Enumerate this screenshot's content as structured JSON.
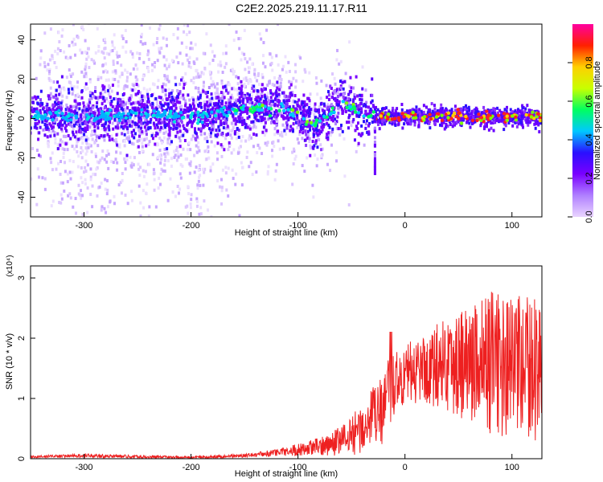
{
  "title": "C2E2.2025.219.11.17.R11",
  "chart_data": [
    {
      "type": "heatmap",
      "xlabel": "Height of straight line (km)",
      "ylabel": "Frequency (Hz)",
      "xlim": [
        -350,
        128
      ],
      "ylim": [
        -50,
        48
      ],
      "xticks": [
        -300,
        -200,
        -100,
        0,
        100
      ],
      "yticks": [
        -40,
        -20,
        0,
        20,
        40
      ],
      "colorbar": {
        "label": "Normalized spectral amplitude",
        "range": [
          0,
          1
        ],
        "ticks": [
          "0.0",
          "0.2",
          "0.4",
          "0.6",
          "0.8"
        ],
        "colors": [
          "#e9d4ff",
          "#b080ff",
          "#7a00ff",
          "#2a10ff",
          "#00c8ff",
          "#00ff60",
          "#c8ff00",
          "#ffd000",
          "#ff2000",
          "#ff00a0"
        ]
      },
      "ridge": {
        "x": [
          -350,
          -300,
          -250,
          -200,
          -170,
          -150,
          -130,
          -110,
          -100,
          -95,
          -85,
          -80,
          -70,
          -60,
          -50,
          -40,
          -30,
          -28,
          -20,
          0,
          50,
          100,
          128
        ],
        "y": [
          2,
          1,
          2,
          1,
          3,
          5,
          6,
          4,
          2,
          -1,
          -3,
          -2,
          4,
          8,
          6,
          3,
          2,
          1,
          1,
          1,
          1,
          1,
          1
        ]
      }
    },
    {
      "type": "line",
      "xlabel": "Height of straight line (km)",
      "ylabel": "SNR (10 * v/v)",
      "yscale_label": "(x10⁴)",
      "xlim": [
        -350,
        128
      ],
      "ylim": [
        0,
        3.2
      ],
      "xticks": [
        -300,
        -200,
        -100,
        0,
        100
      ],
      "yticks": [
        0,
        1,
        2,
        3
      ],
      "color": "#ee2020",
      "envelope": {
        "x": [
          -350,
          -300,
          -200,
          -150,
          -120,
          -100,
          -80,
          -60,
          -50,
          -40,
          -30,
          -20,
          -15,
          -12,
          0,
          20,
          40,
          60,
          80,
          100,
          128
        ],
        "mean": [
          0.03,
          0.05,
          0.02,
          0.05,
          0.1,
          0.15,
          0.2,
          0.3,
          0.4,
          0.5,
          0.7,
          0.8,
          0.9,
          1.2,
          1.4,
          1.5,
          1.6,
          1.6,
          1.6,
          1.5,
          1.5
        ],
        "amp": [
          0.02,
          0.03,
          0.02,
          0.03,
          0.06,
          0.1,
          0.15,
          0.25,
          0.35,
          0.4,
          0.5,
          0.6,
          0.8,
          0.5,
          0.5,
          0.6,
          0.8,
          1.0,
          1.2,
          1.2,
          1.2
        ]
      }
    }
  ]
}
